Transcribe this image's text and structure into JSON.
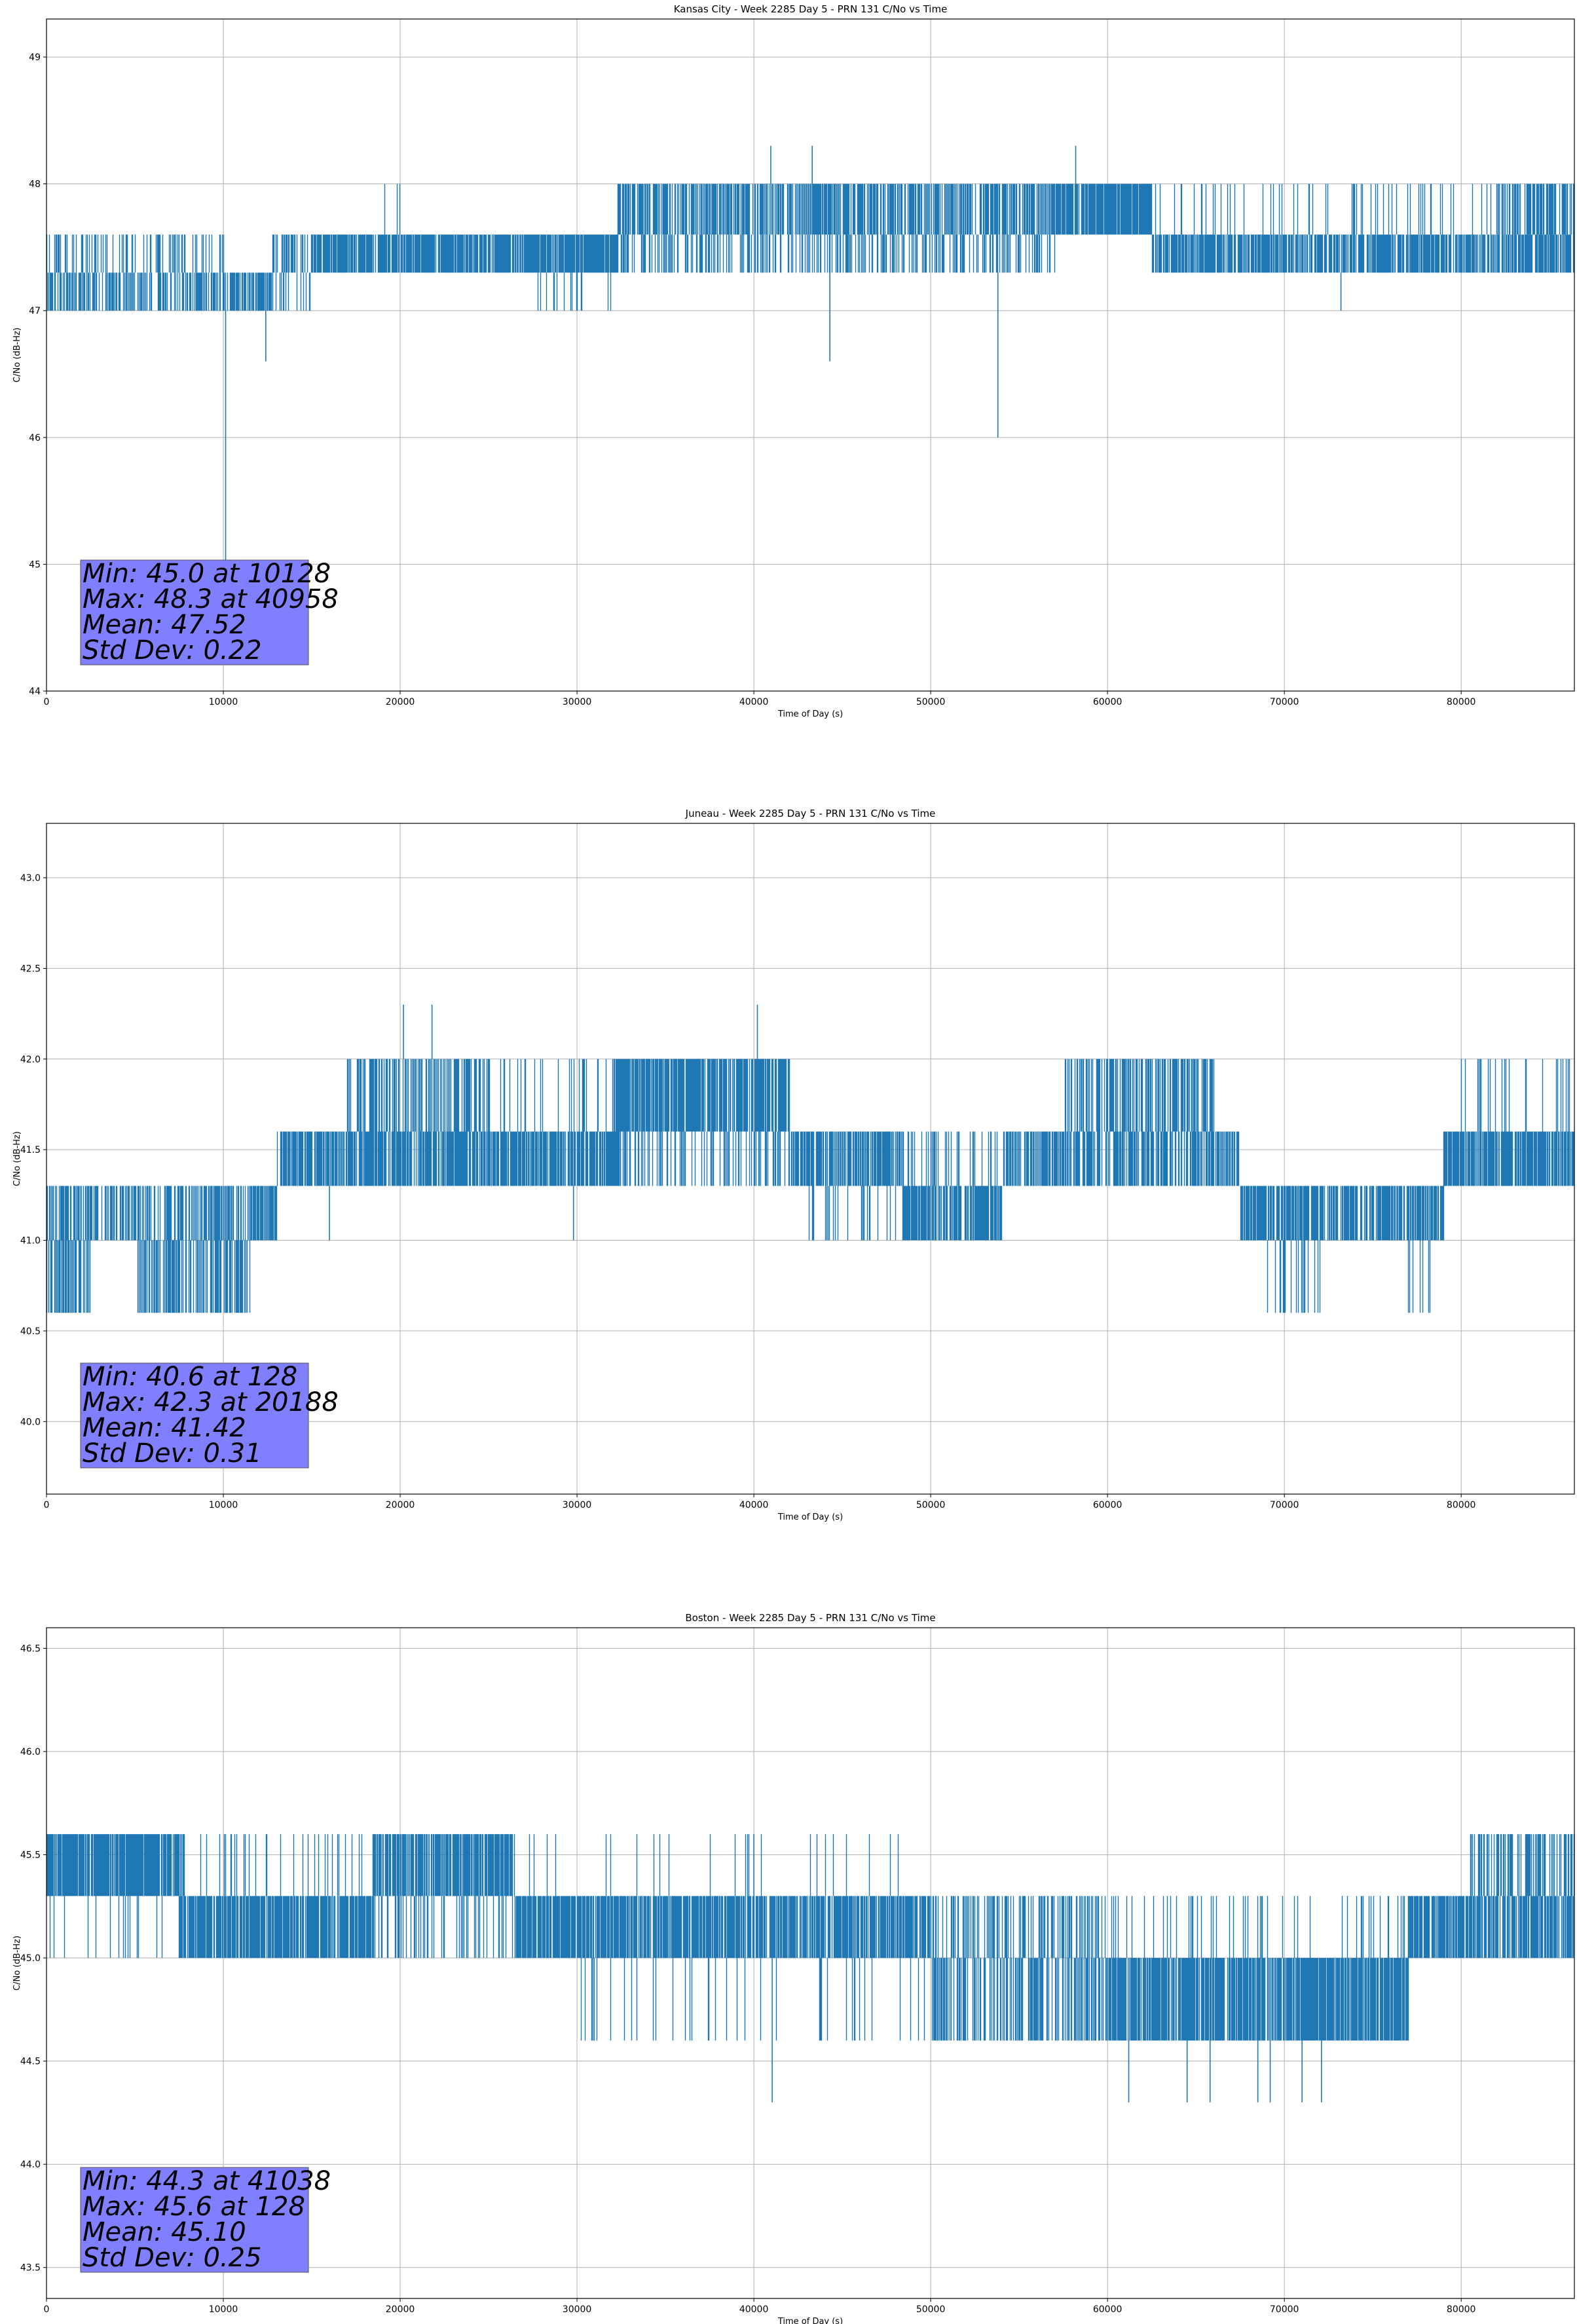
{
  "colors": {
    "series": "#1f77b4",
    "stats_box": "#8080ff",
    "grid": "#b0b0b0",
    "axes": "#000000"
  },
  "chart_data": [
    {
      "type": "line",
      "title": "Kansas City - Week 2285 Day 5 - PRN 131 C/No vs Time",
      "xlabel": "Time of Day (s)",
      "ylabel": "C/No (dB-Hz)",
      "xlim": [
        0,
        86400
      ],
      "ylim": [
        44,
        49.3
      ],
      "xticks": [
        0,
        10000,
        20000,
        30000,
        40000,
        50000,
        60000,
        70000,
        80000
      ],
      "xtick_labels": [
        "0",
        "10000",
        "20000",
        "30000",
        "40000",
        "50000",
        "60000",
        "70000",
        "80000"
      ],
      "yticks": [
        44,
        45,
        46,
        47,
        48,
        49
      ],
      "ytick_labels": [
        "44",
        "45",
        "46",
        "47",
        "48",
        "49"
      ],
      "grid": true,
      "stats": [
        "Min: 45.0 at 10128",
        "Max: 48.3 at 40958",
        "Mean: 47.52",
        "Std Dev: 0.22"
      ],
      "series": [
        {
          "bands": [
            {
              "x0": 0,
              "x1": 10000,
              "lo": 47.0,
              "hi": 47.3,
              "density": 0.55
            },
            {
              "x0": 0,
              "x1": 10000,
              "lo": 47.3,
              "hi": 47.6,
              "density": 0.25
            },
            {
              "x0": 10000,
              "x1": 12800,
              "lo": 47.0,
              "hi": 47.3,
              "density": 0.7
            },
            {
              "x0": 12800,
              "x1": 15000,
              "lo": 47.3,
              "hi": 47.6,
              "density": 0.5
            },
            {
              "x0": 12800,
              "x1": 15000,
              "lo": 47.0,
              "hi": 47.3,
              "density": 0.15
            },
            {
              "x0": 15000,
              "x1": 32300,
              "lo": 47.3,
              "hi": 47.6,
              "density": 0.8
            },
            {
              "x0": 19000,
              "x1": 20000,
              "lo": 47.6,
              "hi": 48.0,
              "density": 0.08
            },
            {
              "x0": 27000,
              "x1": 32000,
              "lo": 47.0,
              "hi": 47.3,
              "density": 0.06
            },
            {
              "x0": 32300,
              "x1": 52000,
              "lo": 47.6,
              "hi": 48.0,
              "density": 0.65
            },
            {
              "x0": 32300,
              "x1": 52000,
              "lo": 47.3,
              "hi": 47.6,
              "density": 0.35
            },
            {
              "x0": 52000,
              "x1": 57000,
              "lo": 47.6,
              "hi": 48.0,
              "density": 0.55
            },
            {
              "x0": 52000,
              "x1": 57000,
              "lo": 47.3,
              "hi": 47.6,
              "density": 0.35
            },
            {
              "x0": 57000,
              "x1": 62500,
              "lo": 47.6,
              "hi": 48.0,
              "density": 0.85
            },
            {
              "x0": 62500,
              "x1": 86400,
              "lo": 47.3,
              "hi": 47.6,
              "density": 0.75
            },
            {
              "x0": 62500,
              "x1": 86400,
              "lo": 47.6,
              "hi": 48.0,
              "density": 0.12
            },
            {
              "x0": 82000,
              "x1": 86400,
              "lo": 47.6,
              "hi": 48.0,
              "density": 0.45
            }
          ],
          "spikes": [
            {
              "x": 10128,
              "lo": 45.0,
              "hi": 47.0
            },
            {
              "x": 12400,
              "lo": 46.6,
              "hi": 47.0
            },
            {
              "x": 40958,
              "lo": 48.0,
              "hi": 48.3
            },
            {
              "x": 43300,
              "lo": 48.0,
              "hi": 48.3
            },
            {
              "x": 44300,
              "lo": 46.6,
              "hi": 47.3
            },
            {
              "x": 53800,
              "lo": 46.0,
              "hi": 47.3
            },
            {
              "x": 58200,
              "lo": 48.0,
              "hi": 48.3
            },
            {
              "x": 73200,
              "lo": 47.0,
              "hi": 47.3
            }
          ]
        }
      ]
    },
    {
      "type": "line",
      "title": "Juneau - Week 2285 Day 5 - PRN 131 C/No vs Time",
      "xlabel": "Time of Day (s)",
      "ylabel": "C/No (dB-Hz)",
      "xlim": [
        0,
        86400
      ],
      "ylim": [
        39.6,
        43.3
      ],
      "xticks": [
        0,
        10000,
        20000,
        30000,
        40000,
        50000,
        60000,
        70000,
        80000
      ],
      "xtick_labels": [
        "0",
        "10000",
        "20000",
        "30000",
        "40000",
        "50000",
        "60000",
        "70000",
        "80000"
      ],
      "yticks": [
        40.0,
        40.5,
        41.0,
        41.5,
        42.0,
        42.5,
        43.0
      ],
      "ytick_labels": [
        "40.0",
        "40.5",
        "41.0",
        "41.5",
        "42.0",
        "42.5",
        "43.0"
      ],
      "grid": true,
      "stats": [
        "Min: 40.6 at 128",
        "Max: 42.3 at 20188",
        "Mean: 41.42",
        "Std Dev: 0.31"
      ],
      "series": [
        {
          "bands": [
            {
              "x0": 0,
              "x1": 2500,
              "lo": 40.6,
              "hi": 41.0,
              "density": 0.6
            },
            {
              "x0": 0,
              "x1": 12800,
              "lo": 41.0,
              "hi": 41.3,
              "density": 0.55
            },
            {
              "x0": 5000,
              "x1": 11500,
              "lo": 40.6,
              "hi": 41.0,
              "density": 0.55
            },
            {
              "x0": 11500,
              "x1": 13000,
              "lo": 41.0,
              "hi": 41.3,
              "density": 0.6
            },
            {
              "x0": 13000,
              "x1": 32500,
              "lo": 41.3,
              "hi": 41.6,
              "density": 0.75
            },
            {
              "x0": 17000,
              "x1": 25000,
              "lo": 41.6,
              "hi": 42.0,
              "density": 0.5
            },
            {
              "x0": 25000,
              "x1": 32000,
              "lo": 41.6,
              "hi": 42.0,
              "density": 0.15
            },
            {
              "x0": 32000,
              "x1": 42000,
              "lo": 41.6,
              "hi": 42.0,
              "density": 0.8
            },
            {
              "x0": 32000,
              "x1": 42000,
              "lo": 41.3,
              "hi": 41.6,
              "density": 0.3
            },
            {
              "x0": 42000,
              "x1": 48500,
              "lo": 41.3,
              "hi": 41.6,
              "density": 0.7
            },
            {
              "x0": 43000,
              "x1": 48500,
              "lo": 41.0,
              "hi": 41.3,
              "density": 0.15
            },
            {
              "x0": 48500,
              "x1": 54000,
              "lo": 41.0,
              "hi": 41.3,
              "density": 0.75
            },
            {
              "x0": 48500,
              "x1": 54000,
              "lo": 41.3,
              "hi": 41.6,
              "density": 0.2
            },
            {
              "x0": 54000,
              "x1": 67500,
              "lo": 41.3,
              "hi": 41.6,
              "density": 0.6
            },
            {
              "x0": 57500,
              "x1": 66000,
              "lo": 41.6,
              "hi": 42.0,
              "density": 0.5
            },
            {
              "x0": 67500,
              "x1": 79000,
              "lo": 41.0,
              "hi": 41.3,
              "density": 0.75
            },
            {
              "x0": 69000,
              "x1": 72000,
              "lo": 40.6,
              "hi": 41.0,
              "density": 0.3
            },
            {
              "x0": 77000,
              "x1": 78500,
              "lo": 40.6,
              "hi": 41.0,
              "density": 0.25
            },
            {
              "x0": 79000,
              "x1": 86400,
              "lo": 41.3,
              "hi": 41.6,
              "density": 0.75
            },
            {
              "x0": 80000,
              "x1": 86400,
              "lo": 41.6,
              "hi": 42.0,
              "density": 0.15
            }
          ],
          "spikes": [
            {
              "x": 128,
              "lo": 40.6,
              "hi": 41.0
            },
            {
              "x": 20188,
              "lo": 42.0,
              "hi": 42.3
            },
            {
              "x": 21800,
              "lo": 42.0,
              "hi": 42.3
            },
            {
              "x": 40200,
              "lo": 42.0,
              "hi": 42.3
            },
            {
              "x": 29800,
              "lo": 41.0,
              "hi": 41.3
            },
            {
              "x": 16000,
              "lo": 41.0,
              "hi": 41.3
            }
          ]
        }
      ]
    },
    {
      "type": "line",
      "title": "Boston - Week 2285 Day 5 - PRN 131 C/No vs Time",
      "xlabel": "Time of Day (s)",
      "ylabel": "C/No (dB-Hz)",
      "xlim": [
        0,
        86400
      ],
      "ylim": [
        43.35,
        46.6
      ],
      "xticks": [
        0,
        10000,
        20000,
        30000,
        40000,
        50000,
        60000,
        70000,
        80000
      ],
      "xtick_labels": [
        "0",
        "10000",
        "20000",
        "30000",
        "40000",
        "50000",
        "60000",
        "70000",
        "80000"
      ],
      "yticks": [
        43.5,
        44.0,
        44.5,
        45.0,
        45.5,
        46.0,
        46.5
      ],
      "ytick_labels": [
        "43.5",
        "44.0",
        "44.5",
        "45.0",
        "45.5",
        "46.0",
        "46.5"
      ],
      "grid": true,
      "stats": [
        "Min: 44.3 at 41038",
        "Max: 45.6 at 128",
        "Mean: 45.10",
        "Std Dev: 0.25"
      ],
      "series": [
        {
          "bands": [
            {
              "x0": 0,
              "x1": 7500,
              "lo": 45.3,
              "hi": 45.6,
              "density": 0.85
            },
            {
              "x0": 0,
              "x1": 7500,
              "lo": 45.0,
              "hi": 45.3,
              "density": 0.1
            },
            {
              "x0": 7500,
              "x1": 18500,
              "lo": 45.0,
              "hi": 45.3,
              "density": 0.8
            },
            {
              "x0": 7500,
              "x1": 18500,
              "lo": 45.3,
              "hi": 45.6,
              "density": 0.1
            },
            {
              "x0": 18500,
              "x1": 26500,
              "lo": 45.3,
              "hi": 45.6,
              "density": 0.75
            },
            {
              "x0": 18500,
              "x1": 26500,
              "lo": 45.0,
              "hi": 45.3,
              "density": 0.2
            },
            {
              "x0": 26500,
              "x1": 50000,
              "lo": 45.0,
              "hi": 45.3,
              "density": 0.8
            },
            {
              "x0": 26500,
              "x1": 50000,
              "lo": 45.3,
              "hi": 45.6,
              "density": 0.04
            },
            {
              "x0": 30000,
              "x1": 50000,
              "lo": 44.6,
              "hi": 45.0,
              "density": 0.08
            },
            {
              "x0": 50000,
              "x1": 60000,
              "lo": 45.0,
              "hi": 45.3,
              "density": 0.45
            },
            {
              "x0": 50000,
              "x1": 60000,
              "lo": 44.6,
              "hi": 45.0,
              "density": 0.5
            },
            {
              "x0": 60000,
              "x1": 77000,
              "lo": 44.6,
              "hi": 45.0,
              "density": 0.8
            },
            {
              "x0": 60000,
              "x1": 77000,
              "lo": 45.0,
              "hi": 45.3,
              "density": 0.1
            },
            {
              "x0": 77000,
              "x1": 86400,
              "lo": 45.0,
              "hi": 45.3,
              "density": 0.75
            },
            {
              "x0": 80500,
              "x1": 86400,
              "lo": 45.3,
              "hi": 45.6,
              "density": 0.45
            }
          ],
          "spikes": [
            {
              "x": 128,
              "lo": 45.3,
              "hi": 45.6
            },
            {
              "x": 41038,
              "lo": 44.3,
              "hi": 45.0
            },
            {
              "x": 61200,
              "lo": 44.3,
              "hi": 44.6
            },
            {
              "x": 64500,
              "lo": 44.3,
              "hi": 44.6
            },
            {
              "x": 65800,
              "lo": 44.3,
              "hi": 44.6
            },
            {
              "x": 68500,
              "lo": 44.3,
              "hi": 44.6
            },
            {
              "x": 69200,
              "lo": 44.3,
              "hi": 44.6
            },
            {
              "x": 71000,
              "lo": 44.3,
              "hi": 44.6
            },
            {
              "x": 72100,
              "lo": 44.3,
              "hi": 44.6
            },
            {
              "x": 40000,
              "lo": 45.3,
              "hi": 45.6
            },
            {
              "x": 30900,
              "lo": 44.6,
              "hi": 45.0
            }
          ]
        }
      ]
    }
  ]
}
